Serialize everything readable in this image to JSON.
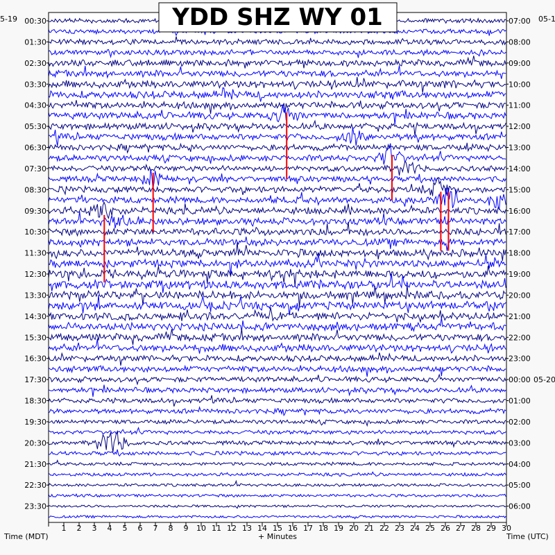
{
  "chart_data": {
    "type": "line",
    "title": "YDD SHZ WY 01",
    "date_left": "5-19",
    "date_right_top": "05-1",
    "date_right_mid": "05-20",
    "xlabel": "+ Minutes",
    "left_axis_label": "Time (MDT)",
    "right_axis_label": "Time (UTC)",
    "x_ticks": [
      "1",
      "2",
      "3",
      "4",
      "5",
      "6",
      "7",
      "8",
      "9",
      "10",
      "11",
      "12",
      "13",
      "14",
      "15",
      "16",
      "17",
      "18",
      "19",
      "20",
      "21",
      "22",
      "23",
      "24",
      "25",
      "26",
      "27",
      "28",
      "29",
      "30"
    ],
    "xlim": [
      0,
      30
    ],
    "left_times": [
      "00:30",
      "01:30",
      "02:30",
      "03:30",
      "04:30",
      "05:30",
      "06:30",
      "07:30",
      "08:30",
      "09:30",
      "10:30",
      "11:30",
      "12:30",
      "13:30",
      "14:30",
      "15:30",
      "16:30",
      "17:30",
      "18:30",
      "19:30",
      "20:30",
      "21:30",
      "22:30",
      "23:30"
    ],
    "right_times": [
      "07:00",
      "08:00",
      "09:00",
      "10:00",
      "11:00",
      "12:00",
      "13:00",
      "14:00",
      "15:00",
      "16:00",
      "17:00",
      "18:00",
      "19:00",
      "20:00",
      "21:00",
      "22:00",
      "23:00",
      "00:00",
      "01:00",
      "02:00",
      "03:00",
      "04:00",
      "05:00",
      "06:00"
    ],
    "traces_per_hour": 2,
    "trace_colors": [
      "#000080",
      "#0000ff"
    ],
    "pick_color": "#ff0000",
    "activity_by_hour": [
      0.35,
      0.45,
      0.6,
      0.7,
      0.65,
      0.6,
      0.55,
      0.5,
      0.6,
      0.65,
      0.7,
      0.75,
      0.85,
      0.8,
      0.75,
      0.7,
      0.55,
      0.45,
      0.4,
      0.3,
      0.3,
      0.2,
      0.15,
      0.1
    ],
    "events": [
      {
        "hour_row": 4.5,
        "minute": 15.6,
        "amp": 1.0
      },
      {
        "hour_row": 5.5,
        "minute": 20.0,
        "amp": 0.8
      },
      {
        "hour_row": 6.5,
        "minute": 22.4,
        "amp": 1.2
      },
      {
        "hour_row": 7.0,
        "minute": 23.5,
        "amp": 0.7
      },
      {
        "hour_row": 7.5,
        "minute": 6.8,
        "amp": 0.9
      },
      {
        "hour_row": 8.0,
        "minute": 25.6,
        "amp": 1.1
      },
      {
        "hour_row": 8.5,
        "minute": 26.1,
        "amp": 1.1
      },
      {
        "hour_row": 8.5,
        "minute": 29.5,
        "amp": 0.8
      },
      {
        "hour_row": 9.0,
        "minute": 3.6,
        "amp": 1.0
      },
      {
        "hour_row": 9.5,
        "minute": 4.5,
        "amp": 0.7
      },
      {
        "hour_row": 20.0,
        "minute": 3.8,
        "amp": 0.9
      },
      {
        "hour_row": 20.0,
        "minute": 4.5,
        "amp": 0.9
      }
    ],
    "picks": [
      {
        "minute": 15.6,
        "t0": 4.35,
        "t1": 7.5
      },
      {
        "minute": 22.5,
        "t0": 6.35,
        "t1": 8.5
      },
      {
        "minute": 6.85,
        "t0": 7.2,
        "t1": 10.0
      },
      {
        "minute": 3.65,
        "t0": 9.2,
        "t1": 12.4
      },
      {
        "minute": 25.7,
        "t0": 8.1,
        "t1": 10.9
      },
      {
        "minute": 26.2,
        "t0": 8.1,
        "t1": 10.9
      }
    ]
  }
}
